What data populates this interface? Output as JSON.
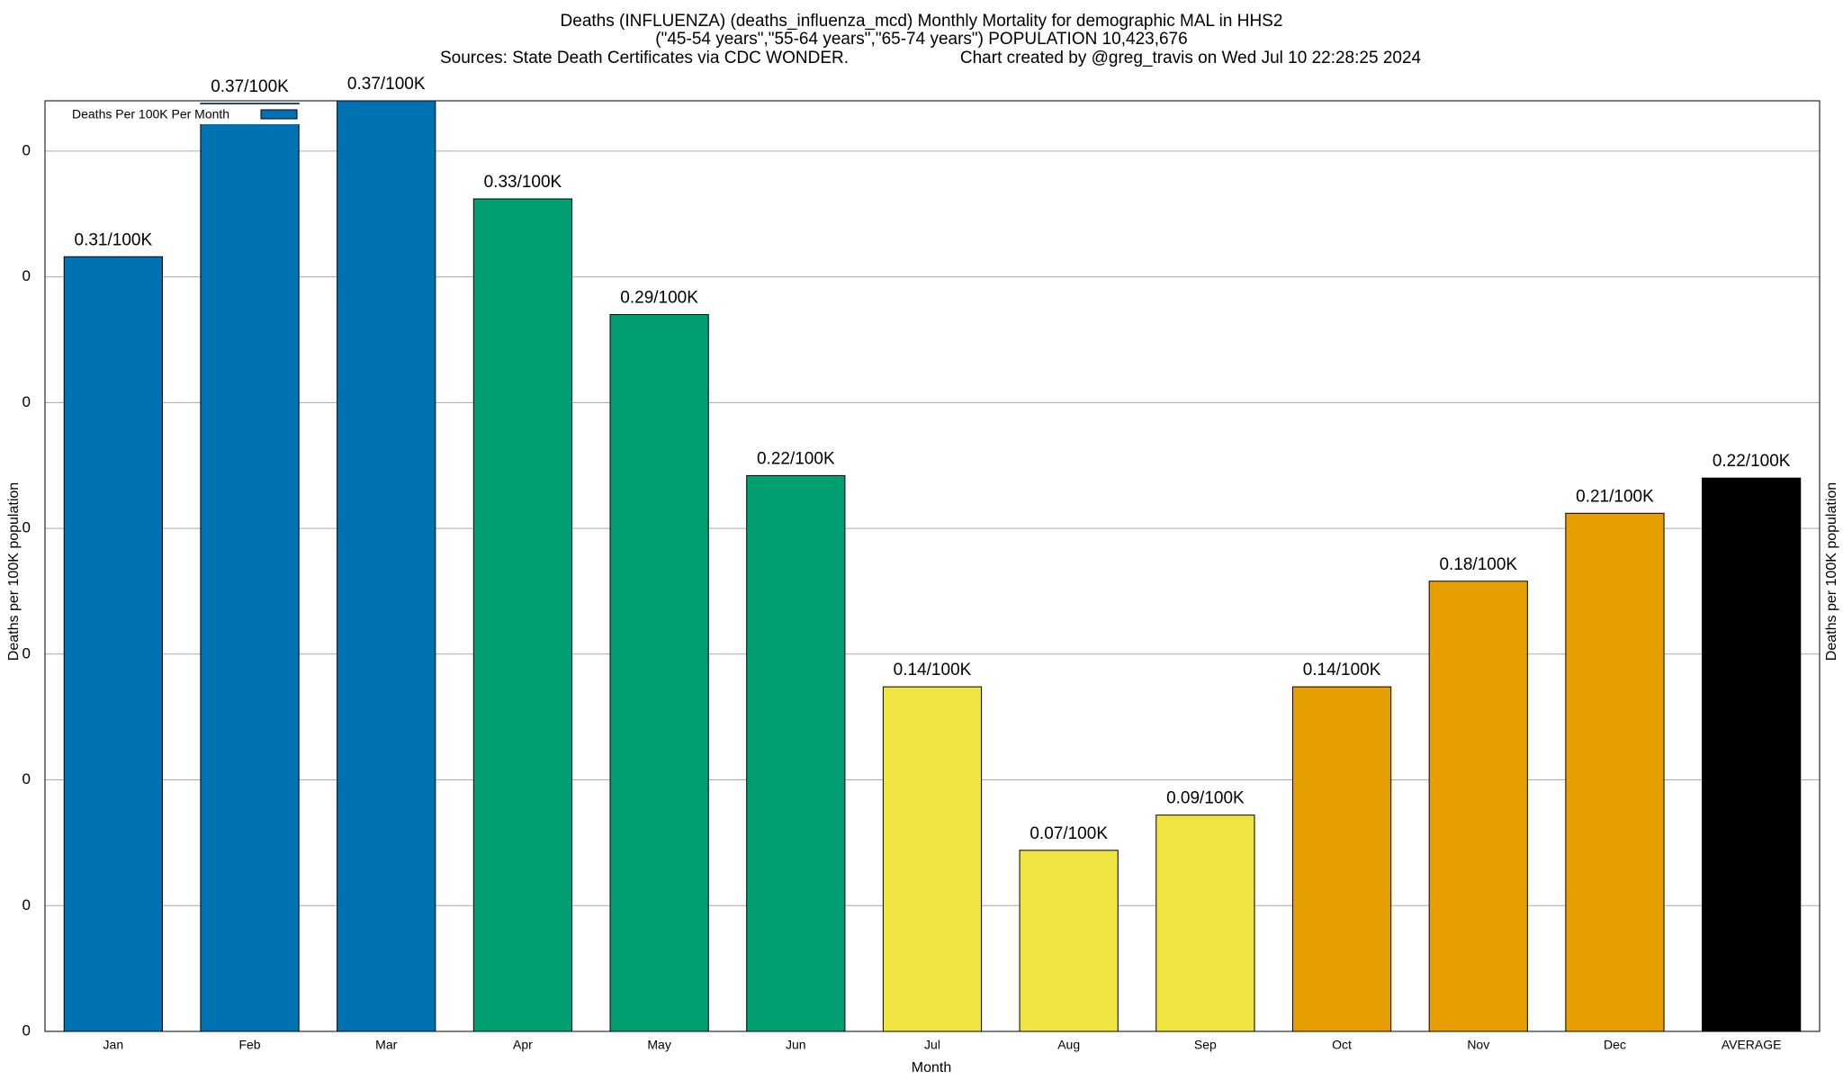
{
  "chart_data": {
    "type": "bar",
    "title": "Deaths (INFLUENZA) (deaths_influenza_mcd) Monthly Mortality for demographic MAL in HHS2",
    "subtitle": "(\"45-54 years\",\"55-64 years\",\"65-74 years\") POPULATION 10,423,676",
    "sources": "Sources: State Death Certificates via CDC WONDER.",
    "credit": "Chart created by @greg_travis on Wed Jul 10 22:28:25 2024",
    "x_label": "Month",
    "y_label": "Deaths per 100K population",
    "y2_label": "Deaths per 100K population",
    "categories": [
      "Jan",
      "Feb",
      "Mar",
      "Apr",
      "May",
      "Jun",
      "Jul",
      "Aug",
      "Sep",
      "Oct",
      "Nov",
      "Dec",
      "AVERAGE"
    ],
    "series": [
      {
        "name": "Deaths Per 100K Per Month",
        "color": "#0072b2",
        "colors": [
          "#0072b2",
          "#0072b2",
          "#0072b2",
          "#009e73",
          "#009e73",
          "#009e73",
          "#f0e442",
          "#f0e442",
          "#f0e442",
          "#e69f00",
          "#e69f00",
          "#e69f00",
          "#000000"
        ],
        "values": [
          0.308,
          0.369,
          0.37,
          0.331,
          0.285,
          0.221,
          0.137,
          0.072,
          0.086,
          0.137,
          0.179,
          0.206,
          0.22
        ],
        "value_labels": [
          "0.31/100K",
          "0.37/100K",
          "0.37/100K",
          "0.33/100K",
          "0.29/100K",
          "0.22/100K",
          "0.14/100K",
          "0.07/100K",
          "0.09/100K",
          "0.14/100K",
          "0.18/100K",
          "0.21/100K",
          "0.22/100K"
        ]
      }
    ],
    "ylim": [
      0,
      0.37
    ],
    "yticks": [
      0,
      {
        "value": 0.05,
        "label": "0"
      },
      {
        "value": 0.1,
        "label": "0"
      },
      {
        "value": 0.15,
        "label": "0"
      },
      {
        "value": 0.2,
        "label": "0"
      },
      {
        "value": 0.25,
        "label": "0"
      },
      {
        "value": 0.3,
        "label": "0"
      },
      {
        "value": 0.35,
        "label": "0"
      }
    ],
    "grid": true,
    "legend": "top-left"
  }
}
